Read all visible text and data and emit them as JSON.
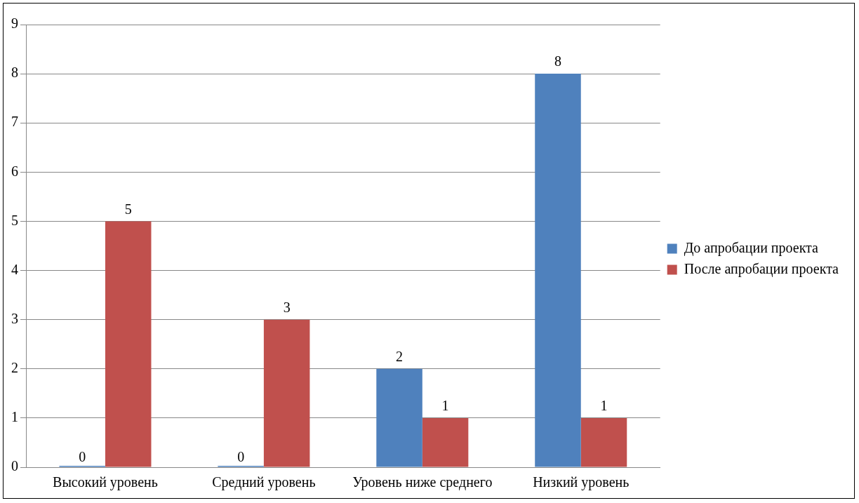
{
  "chart_data": {
    "type": "bar",
    "categories": [
      "Высокий уровень",
      "Средний уровень",
      "Уровень ниже среднего",
      "Низкий уровень"
    ],
    "series": [
      {
        "name": "До апробации проекта",
        "color": "#4f81bd",
        "values": [
          0,
          0,
          2,
          8
        ]
      },
      {
        "name": "После апробации проекта",
        "color": "#c0504d",
        "values": [
          5,
          3,
          1,
          1
        ]
      }
    ],
    "ylim": [
      0,
      9
    ],
    "yticks": [
      0,
      1,
      2,
      3,
      4,
      5,
      6,
      7,
      8,
      9
    ],
    "grid": "y",
    "legend": "right",
    "data_labels": true
  }
}
